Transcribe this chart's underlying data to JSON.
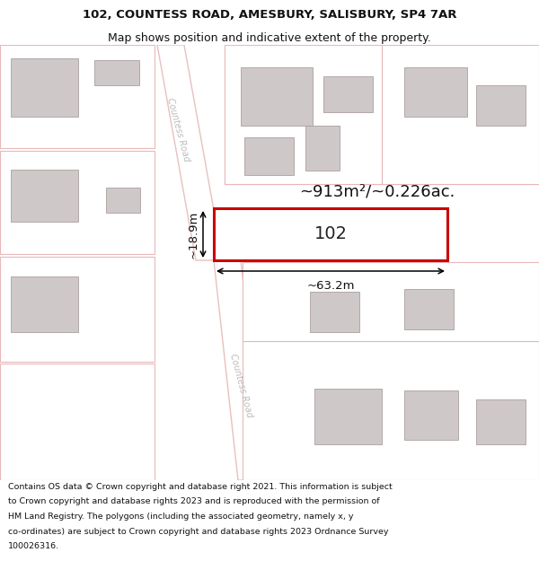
{
  "title_line1": "102, COUNTESS ROAD, AMESBURY, SALISBURY, SP4 7AR",
  "title_line2": "Map shows position and indicative extent of the property.",
  "footer_lines": [
    "Contains OS data © Crown copyright and database right 2021. This information is subject",
    "to Crown copyright and database rights 2023 and is reproduced with the permission of",
    "HM Land Registry. The polygons (including the associated geometry, namely x, y",
    "co-ordinates) are subject to Crown copyright and database rights 2023 Ordnance Survey",
    "100026316."
  ],
  "map_bg": "#f5eeee",
  "road_color": "#ffffff",
  "road_border": "#e8c0c0",
  "building_fill": "#cfc8c8",
  "building_border": "#aaa0a0",
  "highlight_fill": "#ffffff",
  "highlight_border": "#cc0000",
  "road_label": "Countess Road",
  "area_label": "~913m²/~0.226ac.",
  "dim_width": "~63.2m",
  "dim_height": "~18.9m",
  "property_label": "102",
  "title_fontsize": 9.5,
  "subtitle_fontsize": 9.0,
  "footer_fontsize": 6.8,
  "label_fontsize": 14,
  "area_fontsize": 13,
  "dim_fontsize": 9.5
}
